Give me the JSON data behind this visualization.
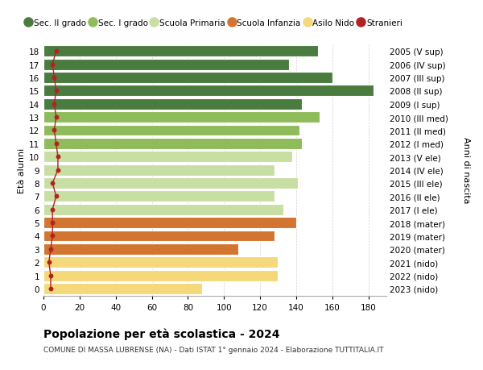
{
  "ages": [
    18,
    17,
    16,
    15,
    14,
    13,
    12,
    11,
    10,
    9,
    8,
    7,
    6,
    5,
    4,
    3,
    2,
    1,
    0
  ],
  "bar_values": [
    152,
    136,
    160,
    183,
    143,
    153,
    142,
    143,
    138,
    128,
    141,
    128,
    133,
    140,
    128,
    108,
    130,
    130,
    88
  ],
  "stranieri": [
    7,
    5,
    6,
    7,
    6,
    7,
    6,
    7,
    8,
    8,
    5,
    7,
    5,
    5,
    5,
    4,
    3,
    4,
    4
  ],
  "right_labels": [
    "2005 (V sup)",
    "2006 (IV sup)",
    "2007 (III sup)",
    "2008 (II sup)",
    "2009 (I sup)",
    "2010 (III med)",
    "2011 (II med)",
    "2012 (I med)",
    "2013 (V ele)",
    "2014 (IV ele)",
    "2015 (III ele)",
    "2016 (II ele)",
    "2017 (I ele)",
    "2018 (mater)",
    "2019 (mater)",
    "2020 (mater)",
    "2021 (nido)",
    "2022 (nido)",
    "2023 (nido)"
  ],
  "bar_colors": [
    "#4a7c3f",
    "#4a7c3f",
    "#4a7c3f",
    "#4a7c3f",
    "#4a7c3f",
    "#8fbc5a",
    "#8fbc5a",
    "#8fbc5a",
    "#c8dfa4",
    "#c8dfa4",
    "#c8dfa4",
    "#c8dfa4",
    "#c8dfa4",
    "#d27530",
    "#d27530",
    "#d27530",
    "#f5d87a",
    "#f5d87a",
    "#f5d87a"
  ],
  "legend_labels": [
    "Sec. II grado",
    "Sec. I grado",
    "Scuola Primaria",
    "Scuola Infanzia",
    "Asilo Nido",
    "Stranieri"
  ],
  "legend_colors": [
    "#4a7c3f",
    "#8fbc5a",
    "#c8dfa4",
    "#d27530",
    "#f5d87a",
    "#b22222"
  ],
  "stranieri_color": "#b22222",
  "title": "Popolazione per età scolastica - 2024",
  "subtitle": "COMUNE DI MASSA LUBRENSE (NA) - Dati ISTAT 1° gennaio 2024 - Elaborazione TUTTITALIA.IT",
  "ylabel_left": "Età alunni",
  "ylabel_right": "Anni di nascita",
  "xlim": [
    0,
    190
  ],
  "xticks": [
    0,
    20,
    40,
    60,
    80,
    100,
    120,
    140,
    160,
    180
  ],
  "bg_color": "#ffffff",
  "grid_color": "#d0d0d0"
}
